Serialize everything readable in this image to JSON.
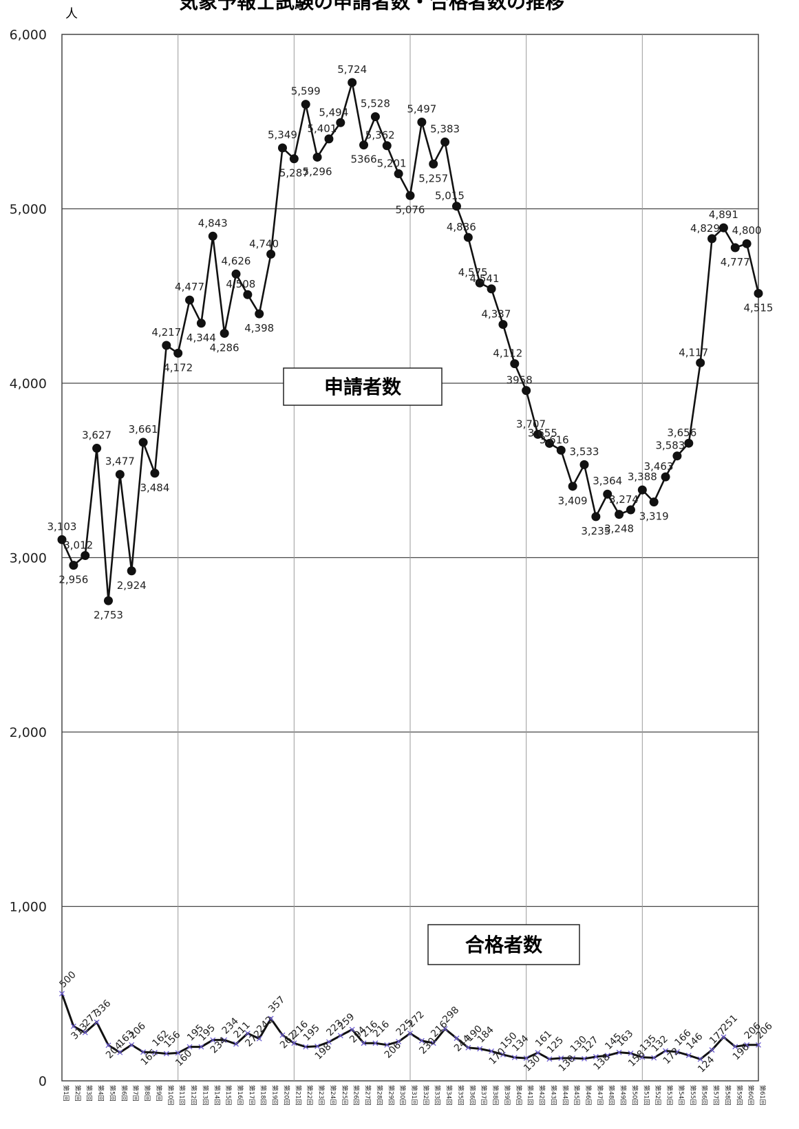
{
  "chart_data": {
    "type": "line",
    "title": "気象予報士試験の申請者数・合格者数の推移",
    "ylabel": "人",
    "ylim": [
      0,
      6000
    ],
    "yticks": [
      "0",
      "1,000",
      "2,000",
      "3,000",
      "4,000",
      "5,000",
      "6,000"
    ],
    "grid": true,
    "x": [
      "第1回",
      "第2回",
      "第3回",
      "第4回",
      "第5回",
      "第6回",
      "第7回",
      "第8回",
      "第9回",
      "第10回",
      "第11回",
      "第12回",
      "第13回",
      "第14回",
      "第15回",
      "第16回",
      "第17回",
      "第18回",
      "第19回",
      "第20回",
      "第21回",
      "第22回",
      "第23回",
      "第24回",
      "第25回",
      "第26回",
      "第27回",
      "第28回",
      "第29回",
      "第30回",
      "第31回",
      "第32回",
      "第33回",
      "第34回",
      "第35回",
      "第36回",
      "第37回",
      "第38回",
      "第39回",
      "第40回",
      "第41回",
      "第42回",
      "第43回",
      "第44回",
      "第45回",
      "第46回",
      "第47回",
      "第48回",
      "第49回",
      "第50回",
      "第51回",
      "第52回",
      "第53回",
      "第54回",
      "第55回",
      "第56回",
      "第57回",
      "第58回",
      "第59回",
      "第60回",
      "第61回"
    ],
    "series": [
      {
        "name": "申請者数",
        "values": [
          3103,
          2956,
          3012,
          3627,
          2753,
          3477,
          2924,
          3661,
          3484,
          4217,
          4172,
          4477,
          4344,
          4843,
          4286,
          4626,
          4508,
          4398,
          4740,
          5349,
          5287,
          5599,
          5296,
          5401,
          5494,
          5724,
          5366,
          5528,
          5362,
          5201,
          5076,
          5497,
          5257,
          5383,
          5015,
          4836,
          4575,
          4541,
          4337,
          4112,
          3958,
          3707,
          3655,
          3616,
          3409,
          3533,
          3235,
          3364,
          3248,
          3274,
          3388,
          3319,
          3463,
          3583,
          3656,
          4117,
          4829,
          4891,
          4777,
          4800,
          4515
        ],
        "labels": [
          "3,103",
          "2,956",
          "3,012",
          "3,627",
          "2,753",
          "3,477",
          "2,924",
          "3,661",
          "3,484",
          "4,217",
          "4,172",
          "4,477",
          "4,344",
          "4,843",
          "4,286",
          "4,626",
          "4,508",
          "4,398",
          "4,740",
          "5,349",
          "5,287",
          "5,599",
          "5,296",
          "5,401",
          "5,494",
          "5,724",
          "5366",
          "5,528",
          "5,362",
          "5,201",
          "5,076",
          "5,497",
          "5,257",
          "5,383",
          "5,015",
          "4,836",
          "4,575",
          "4,541",
          "4,337",
          "4,112",
          "3958",
          "3,707",
          "3,655",
          "3,616",
          "3,409",
          "3,533",
          "3,235",
          "3,364",
          "3,248",
          "3,274",
          "3,388",
          "3,319",
          "3,463",
          "3,583",
          "3,656",
          "4,117",
          "4,829",
          "4,891",
          "4,777",
          "4,800",
          "4,515"
        ]
      },
      {
        "name": "合格者数",
        "values": [
          500,
          313,
          277,
          336,
          204,
          163,
          206,
          165,
          162,
          156,
          160,
          195,
          195,
          234,
          234,
          211,
          272,
          242,
          357,
          262,
          216,
          195,
          198,
          223,
          259,
          294,
          216,
          216,
          206,
          225,
          272,
          230,
          216,
          298,
          244,
          190,
          184,
          170,
          150,
          134,
          130,
          161,
          125,
          130,
          130,
          127,
          138,
          145,
          163,
          158,
          135,
          132,
          172,
          166,
          146,
          124,
          177,
          251,
          196,
          206,
          206
        ],
        "labels": [
          "500",
          "313",
          "277",
          "336",
          "204",
          "163",
          "206",
          "165",
          "162",
          "156",
          "160",
          "195",
          "195",
          "234",
          "234",
          "211",
          "272",
          "242",
          "357",
          "262",
          "216",
          "195",
          "198",
          "223",
          "259",
          "294",
          "216",
          "216",
          "206",
          "225",
          "272",
          "230",
          "216",
          "298",
          "244",
          "190",
          "184",
          "170",
          "150",
          "134",
          "130",
          "161",
          "125",
          "130",
          "130",
          "127",
          "138",
          "145",
          "163",
          "158",
          "135",
          "132",
          "172",
          "166",
          "146",
          "124",
          "177",
          "251",
          "196",
          "206",
          "206"
        ]
      }
    ]
  }
}
